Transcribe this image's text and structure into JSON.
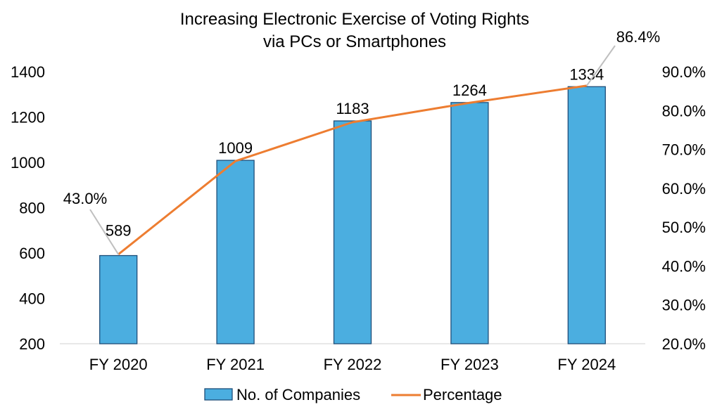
{
  "chart_data": {
    "type": "bar",
    "title_lines": [
      "Increasing Electronic Exercise of Voting Rights",
      "via PCs or Smartphones"
    ],
    "categories": [
      "FY 2020",
      "FY 2021",
      "FY 2022",
      "FY 2023",
      "FY 2024"
    ],
    "series": [
      {
        "name": "No. of Companies",
        "type": "bar",
        "axis": "left",
        "values": [
          589,
          1009,
          1183,
          1264,
          1334
        ],
        "data_labels": [
          "589",
          "1009",
          "1183",
          "1264",
          "1334"
        ],
        "color": "#4BAEE0",
        "edge_color": "#1F4E79"
      },
      {
        "name": "Percentage",
        "type": "line",
        "axis": "right",
        "values": [
          43.0,
          67.0,
          77.0,
          82.0,
          86.4
        ],
        "data_labels": [
          "43.0%",
          "",
          "",
          "",
          "86.4%"
        ],
        "color": "#ED7D31"
      }
    ],
    "y_left": {
      "min": 200,
      "max": 1400,
      "ticks": [
        "200",
        "400",
        "600",
        "800",
        "1000",
        "1200",
        "1400"
      ]
    },
    "y_right": {
      "min": 20,
      "max": 90,
      "ticks": [
        "20.0%",
        "30.0%",
        "40.0%",
        "50.0%",
        "60.0%",
        "70.0%",
        "80.0%",
        "90.0%"
      ]
    },
    "legend_position": "bottom",
    "grid": false
  }
}
